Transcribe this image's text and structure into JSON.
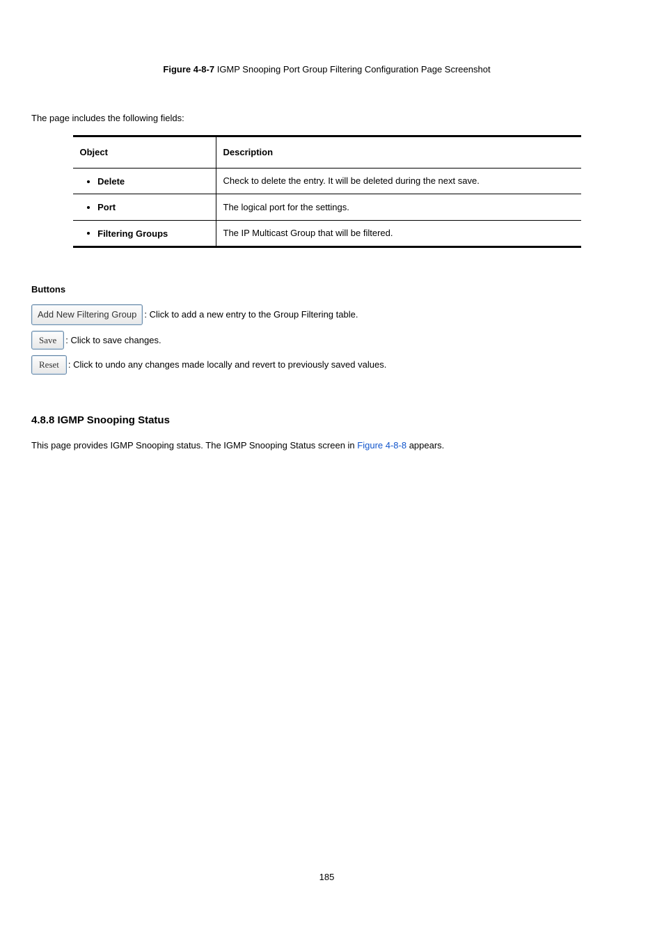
{
  "caption_prefix": "Figure 4-8-7 ",
  "caption_rest": "IGMP Snooping Port Group Filtering Configuration Page Screenshot",
  "intro_line": "The page includes the following fields:",
  "table": {
    "header_left": "Object",
    "header_right": "Description",
    "rows": [
      {
        "name": "Delete",
        "desc": "Check to delete the entry. It will be deleted during the next save."
      },
      {
        "name": "Port",
        "desc": "The logical port for the settings."
      },
      {
        "name": "Filtering Groups",
        "desc": "The IP Multicast Group that will be filtered."
      }
    ]
  },
  "buttons_heading": "Buttons",
  "btn1_label": "Add New Filtering Group",
  "btn1_desc": ": Click to add a new entry to the Group Filtering table.",
  "btn2_label": "Save",
  "btn2_desc": ": Click to save changes.",
  "btn3_label": "Reset",
  "btn3_desc": ": Click to undo any changes made locally and revert to previously saved values.",
  "section_title": "4.8.8 IGMP Snooping Status",
  "status_text_before": "This page provides IGMP Snooping status. The IGMP Snooping Status screen in ",
  "status_figure": "Figure 4-8-8",
  "status_text_after": " appears.",
  "page_number": "185"
}
